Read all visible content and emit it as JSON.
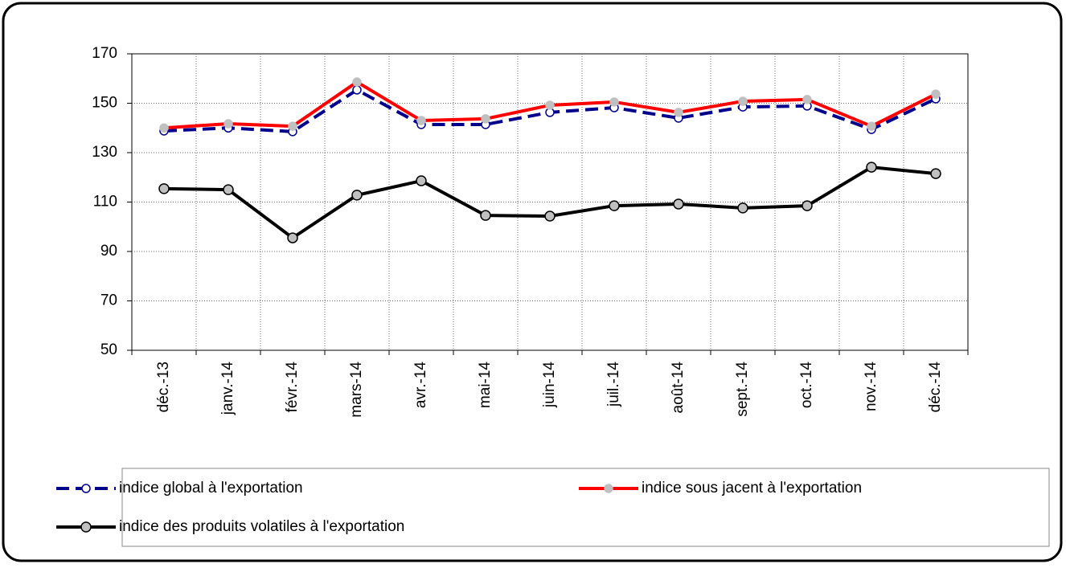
{
  "chart_data": {
    "type": "line",
    "categories": [
      "déc.-13",
      "janv.-14",
      "févr.-14",
      "mars-14",
      "avr.-14",
      "mai-14",
      "juin-14",
      "juil.-14",
      "août-14",
      "sept.-14",
      "oct.-14",
      "nov.-14",
      "déc.-14"
    ],
    "series": [
      {
        "name": "indice global à l'exportation",
        "color": "#00008b",
        "line_style": "dashed",
        "marker_fill": "#ffffff",
        "values": [
          138.8,
          140,
          138.5,
          155.4,
          141.4,
          141.4,
          146.3,
          148.2,
          144,
          148.5,
          148.9,
          139.4,
          151.8
        ]
      },
      {
        "name": "indice sous jacent à l'exportation",
        "color": "#ff0000",
        "line_style": "solid",
        "marker_fill": "#c0c0c0",
        "values": [
          140,
          141.7,
          140.7,
          158.6,
          143,
          143.7,
          149.2,
          150.5,
          146.3,
          150.8,
          151.5,
          140.7,
          153.7
        ]
      },
      {
        "name": "indice des produits volatiles à l'exportation",
        "color": "#000000",
        "line_style": "solid",
        "marker_fill": "#c0c0c0",
        "values": [
          115.4,
          115,
          95.5,
          112.8,
          118.6,
          104.6,
          104.3,
          108.5,
          109.2,
          107.6,
          108.5,
          124.1,
          121.5
        ]
      }
    ],
    "ylim": [
      50,
      170
    ],
    "yticks": [
      50,
      70,
      90,
      110,
      130,
      150,
      170
    ],
    "grid": true,
    "legend": "bottom"
  }
}
